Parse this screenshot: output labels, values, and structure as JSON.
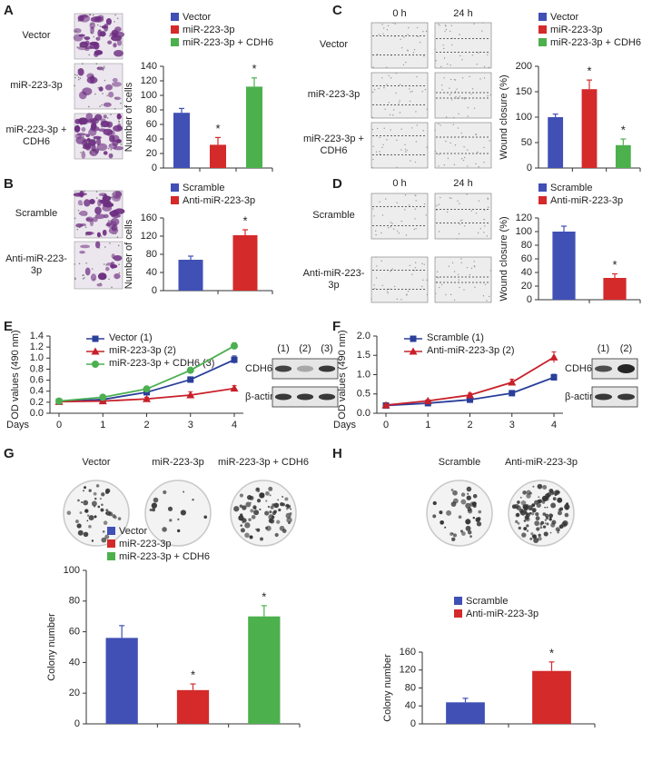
{
  "chart_data": [
    {
      "panel": "A",
      "type": "bar",
      "image_row_labels": [
        "Vector",
        "miR-223-3p",
        "miR-223-3p + CDH6"
      ],
      "ylabel": "Number of cells",
      "ylim": [
        0,
        140
      ],
      "yticks": [
        0,
        20,
        40,
        60,
        80,
        100,
        120,
        140
      ],
      "series": [
        {
          "name": "Vector",
          "color": "#4050b5",
          "values": [
            76
          ],
          "errors": [
            6
          ]
        },
        {
          "name": "miR-223-3p",
          "color": "#d42a2a",
          "values": [
            32
          ],
          "errors": [
            10
          ],
          "annotation": "*"
        },
        {
          "name": "miR-223-3p + CDH6",
          "color": "#4cb04c",
          "values": [
            112
          ],
          "errors": [
            12
          ],
          "annotation": "*"
        }
      ]
    },
    {
      "panel": "B",
      "type": "bar",
      "image_row_labels": [
        "Scramble",
        "Anti-miR-223-3p"
      ],
      "ylabel": "Number of cells",
      "ylim": [
        0,
        160
      ],
      "yticks": [
        0,
        40,
        80,
        120,
        160
      ],
      "series": [
        {
          "name": "Scramble",
          "color": "#4050b5",
          "values": [
            68
          ],
          "errors": [
            8
          ]
        },
        {
          "name": "Anti-miR-223-3p",
          "color": "#d42a2a",
          "values": [
            122
          ],
          "errors": [
            12
          ],
          "annotation": "*"
        }
      ]
    },
    {
      "panel": "C",
      "type": "bar",
      "image_column_labels": [
        "0 h",
        "24 h"
      ],
      "image_row_labels": [
        "Vector",
        "miR-223-3p",
        "miR-223-3p + CDH6"
      ],
      "ylabel": "Wound closure (%)",
      "ylim": [
        0,
        200
      ],
      "yticks": [
        0,
        50,
        100,
        150,
        200
      ],
      "series": [
        {
          "name": "Vector",
          "color": "#4050b5",
          "values": [
            100
          ],
          "errors": [
            6
          ]
        },
        {
          "name": "miR-223-3p",
          "color": "#d42a2a",
          "values": [
            155
          ],
          "errors": [
            18
          ],
          "annotation": "*"
        },
        {
          "name": "miR-223-3p + CDH6",
          "color": "#4cb04c",
          "values": [
            45
          ],
          "errors": [
            12
          ],
          "annotation": "*"
        }
      ]
    },
    {
      "panel": "D",
      "type": "bar",
      "image_column_labels": [
        "0 h",
        "24 h"
      ],
      "image_row_labels": [
        "Scramble",
        "Anti-miR-223-3p"
      ],
      "ylabel": "Wound closure (%)",
      "ylim": [
        0,
        120
      ],
      "yticks": [
        0,
        20,
        40,
        60,
        80,
        100,
        120
      ],
      "series": [
        {
          "name": "Scramble",
          "color": "#4050b5",
          "values": [
            100
          ],
          "errors": [
            8
          ]
        },
        {
          "name": "Anti-miR-223-3p",
          "color": "#d42a2a",
          "values": [
            32
          ],
          "errors": [
            6
          ],
          "annotation": "*"
        }
      ]
    },
    {
      "panel": "E",
      "type": "line",
      "ylabel": "OD values (490 nm)",
      "xlabel": "Days",
      "x": [
        0,
        1,
        2,
        3,
        4
      ],
      "xlim": [
        0,
        4
      ],
      "xticks": [
        0,
        1,
        2,
        3,
        4
      ],
      "ylim": [
        0,
        1.4
      ],
      "yticks": [
        {
          "value": 0,
          "label": "0.0"
        },
        0.2,
        0.4,
        0.6,
        0.8,
        {
          "value": 1,
          "label": "1.0"
        },
        1.2,
        1.4
      ],
      "blot_lanes": [
        "(1)",
        "(2)",
        "(3)"
      ],
      "blot_rows": [
        "CDH6",
        "β-actin"
      ],
      "series": [
        {
          "name": "Vector (1)",
          "color": "#2a3f9a",
          "marker": "square",
          "values": [
            0.21,
            0.25,
            0.38,
            0.61,
            0.97
          ],
          "errors": [
            0.02,
            0.03,
            0.03,
            0.05,
            0.07
          ]
        },
        {
          "name": "miR-223-3p (2)",
          "color": "#c8202a",
          "marker": "triangle",
          "values": [
            0.21,
            0.22,
            0.26,
            0.33,
            0.45
          ],
          "errors": [
            0.02,
            0.04,
            0.03,
            0.06,
            0.05
          ]
        },
        {
          "name": "miR-223-3p + CDH6 (3)",
          "color": "#4caf50",
          "marker": "circle",
          "values": [
            0.22,
            0.29,
            0.44,
            0.78,
            1.22
          ],
          "errors": [
            0.02,
            0.04,
            0.03,
            0.04,
            0.06
          ]
        }
      ]
    },
    {
      "panel": "F",
      "type": "line",
      "ylabel": "OD values (490 nm)",
      "xlabel": "Days",
      "x": [
        0,
        1,
        2,
        3,
        4
      ],
      "xlim": [
        0,
        4
      ],
      "xticks": [
        0,
        1,
        2,
        3,
        4
      ],
      "ylim": [
        0,
        2
      ],
      "yticks": [
        {
          "value": 0,
          "label": "0.0"
        },
        0.5,
        {
          "value": 1,
          "label": "1.0"
        },
        1.5,
        {
          "value": 2,
          "label": "2.0"
        }
      ],
      "blot_lanes": [
        "(1)",
        "(2)"
      ],
      "blot_rows": [
        "CDH6",
        "β-actin"
      ],
      "series": [
        {
          "name": "Scramble (1)",
          "color": "#2a3f9a",
          "marker": "square",
          "values": [
            0.2,
            0.26,
            0.35,
            0.52,
            0.93
          ],
          "errors": [
            0.02,
            0.03,
            0.04,
            0.05,
            0.08
          ]
        },
        {
          "name": "Anti-miR-223-3p (2)",
          "color": "#c8202a",
          "marker": "triangle",
          "values": [
            0.21,
            0.32,
            0.47,
            0.8,
            1.45
          ],
          "errors": [
            0.02,
            0.03,
            0.05,
            0.08,
            0.14
          ]
        }
      ]
    },
    {
      "panel": "G",
      "type": "bar",
      "image_column_labels": [
        "Vector",
        "miR-223-3p",
        "miR-223-3p + CDH6"
      ],
      "ylabel": "Colony number",
      "ylim": [
        0,
        100
      ],
      "yticks": [
        0,
        20,
        40,
        60,
        80,
        100
      ],
      "series": [
        {
          "name": "Vector",
          "color": "#4050b5",
          "values": [
            56
          ],
          "errors": [
            8
          ]
        },
        {
          "name": "miR-223-3p",
          "color": "#d42a2a",
          "values": [
            22
          ],
          "errors": [
            4
          ],
          "annotation": "*"
        },
        {
          "name": "miR-223-3p + CDH6",
          "color": "#4cb04c",
          "values": [
            70
          ],
          "errors": [
            7
          ],
          "annotation": "*"
        }
      ]
    },
    {
      "panel": "H",
      "type": "bar",
      "image_column_labels": [
        "Scramble",
        "Anti-miR-223-3p"
      ],
      "ylabel": "Colony number",
      "ylim": [
        0,
        160
      ],
      "yticks": [
        0,
        40,
        80,
        120,
        160
      ],
      "series": [
        {
          "name": "Scramble",
          "color": "#4050b5",
          "values": [
            48
          ],
          "errors": [
            9
          ]
        },
        {
          "name": "Anti-miR-223-3p",
          "color": "#d42a2a",
          "values": [
            118
          ],
          "errors": [
            20
          ],
          "annotation": "*"
        }
      ]
    }
  ]
}
